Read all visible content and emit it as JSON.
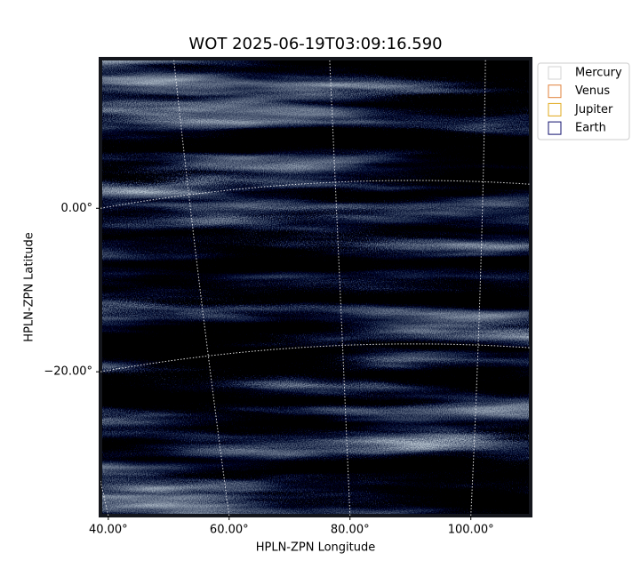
{
  "chart_data": {
    "type": "image",
    "title": "WOT 2025-06-19T03:09:16.590",
    "x_label": "HPLN-ZPN Longitude",
    "y_label": "HPLN-ZPN Latitude",
    "xlim": [
      38.7,
      109.9
    ],
    "ylim": [
      -37.6,
      18.3
    ],
    "xticks": [
      {
        "value": 40,
        "label": "40.00°"
      },
      {
        "value": 60,
        "label": "60.00°"
      },
      {
        "value": 80,
        "label": "80.00°"
      },
      {
        "value": 100,
        "label": "100.00°"
      }
    ],
    "yticks": [
      {
        "value": 0,
        "label": "0.00°"
      },
      {
        "value": -20,
        "label": "−20.00°"
      }
    ],
    "grid": true,
    "legend_loc": "outside upper right",
    "legend": [
      {
        "name": "Mercury",
        "color": "#d3d3d3"
      },
      {
        "name": "Venus",
        "color": "#e0803a"
      },
      {
        "name": "Jupiter",
        "color": "#e0a818"
      },
      {
        "name": "Earth",
        "color": "#10106e"
      }
    ]
  }
}
